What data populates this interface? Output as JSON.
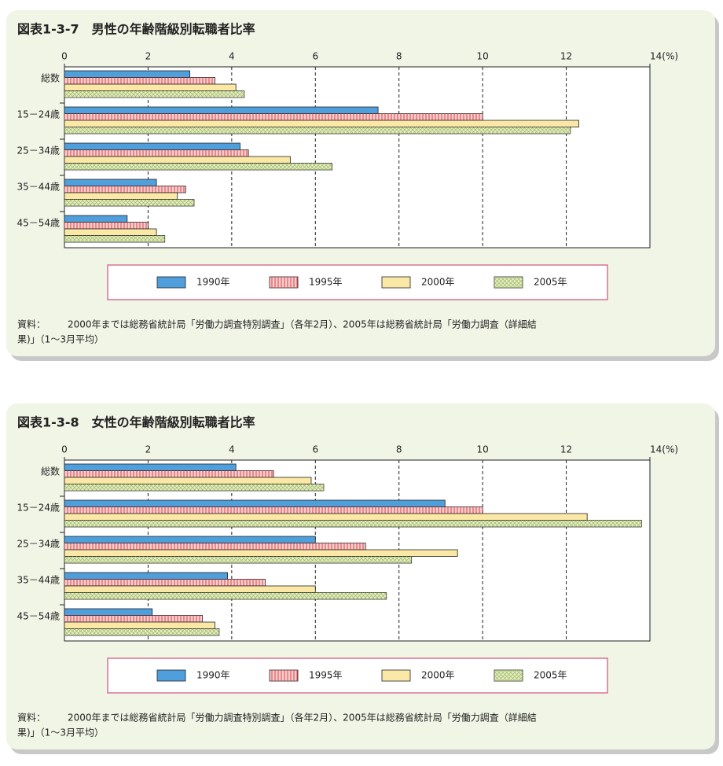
{
  "chart_data": [
    {
      "type": "bar",
      "orientation": "horizontal",
      "title": "図表1-3-7　男性の年齢階級別転職者比率",
      "categories": [
        "総数",
        "15－24歳",
        "25－34歳",
        "35－44歳",
        "45－54歳"
      ],
      "series": [
        {
          "name": "1990年",
          "color": "#4f9fdc",
          "values": [
            3.0,
            7.5,
            4.2,
            2.2,
            1.5
          ]
        },
        {
          "name": "1995年",
          "color": "#f9cccc",
          "values": [
            3.6,
            10.0,
            4.4,
            2.9,
            2.0
          ]
        },
        {
          "name": "2000年",
          "color": "#fbe8a6",
          "values": [
            4.1,
            12.3,
            5.4,
            2.7,
            2.2
          ]
        },
        {
          "name": "2005年",
          "color": "#e4eec0",
          "values": [
            4.3,
            12.1,
            6.4,
            3.1,
            2.4
          ]
        }
      ],
      "xlim": [
        0,
        14
      ],
      "xticks": [
        0,
        2,
        4,
        6,
        8,
        10,
        12,
        {
          "value": 14,
          "label": "14(%)"
        }
      ],
      "grid": true,
      "legend": "bottom",
      "note_label": "資料：",
      "note": [
        "2000年までは総務省統計局「労働力調査特別調査」（各年2月）、2005年は総務省統計局「労働力調査（詳細結",
        "果)」（1～3月平均）"
      ]
    },
    {
      "type": "bar",
      "orientation": "horizontal",
      "title": "図表1-3-8　女性の年齢階級別転職者比率",
      "categories": [
        "総数",
        "15－24歳",
        "25－34歳",
        "35－44歳",
        "45－54歳"
      ],
      "series": [
        {
          "name": "1990年",
          "color": "#4f9fdc",
          "values": [
            4.1,
            9.1,
            6.0,
            3.9,
            2.1
          ]
        },
        {
          "name": "1995年",
          "color": "#f9cccc",
          "values": [
            5.0,
            10.0,
            7.2,
            4.8,
            3.3
          ]
        },
        {
          "name": "2000年",
          "color": "#fbe8a6",
          "values": [
            5.9,
            12.5,
            9.4,
            6.0,
            3.6
          ]
        },
        {
          "name": "2005年",
          "color": "#e4eec0",
          "values": [
            6.2,
            13.8,
            8.3,
            7.7,
            3.7
          ]
        }
      ],
      "xlim": [
        0,
        14
      ],
      "xticks": [
        0,
        2,
        4,
        6,
        8,
        10,
        12,
        {
          "value": 14,
          "label": "14(%)"
        }
      ],
      "grid": true,
      "legend": "bottom",
      "note_label": "資料：",
      "note": [
        "2000年までは総務省統計局「労働力調査特別調査」（各年2月）、2005年は総務省統計局「労働力調査（詳細結",
        "果)」（1～3月平均）"
      ]
    }
  ]
}
